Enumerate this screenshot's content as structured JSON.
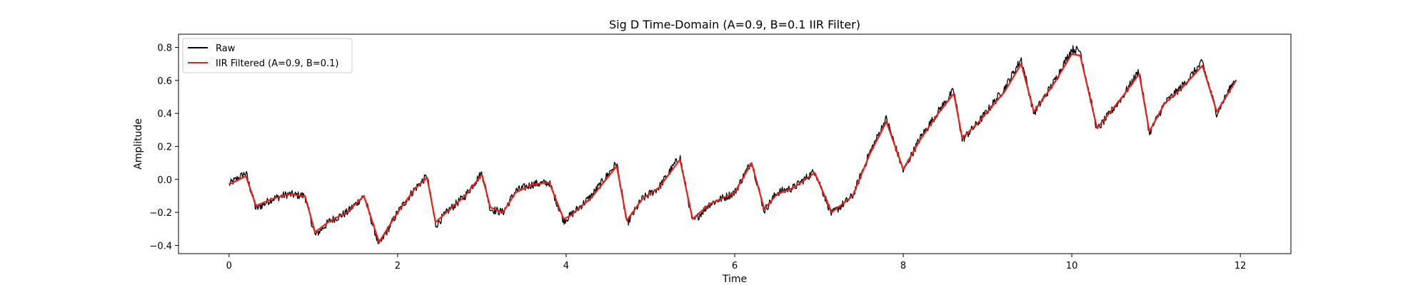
{
  "chart_data": {
    "type": "line",
    "title": "Sig D Time-Domain (A=0.9, B=0.1 IIR Filter)",
    "xlabel": "Time",
    "ylabel": "Amplitude",
    "xlim": [
      -0.6,
      12.6
    ],
    "ylim": [
      -0.45,
      0.88
    ],
    "xticks": [
      0,
      2,
      4,
      6,
      8,
      10,
      12
    ],
    "yticks": [
      -0.4,
      -0.2,
      0.0,
      0.2,
      0.4,
      0.6,
      0.8
    ],
    "xtick_labels": [
      "0",
      "2",
      "4",
      "6",
      "8",
      "10",
      "12"
    ],
    "ytick_labels": [
      "−0.4",
      "−0.2",
      "0.0",
      "0.2",
      "0.4",
      "0.6",
      "0.8"
    ],
    "grid": false,
    "legend_position": "top-left",
    "series": [
      {
        "name": "Raw",
        "color": "#000000",
        "noisy": true,
        "x": [
          0.0,
          0.2,
          0.32,
          0.5,
          0.7,
          0.9,
          1.02,
          1.2,
          1.4,
          1.6,
          1.78,
          2.0,
          2.2,
          2.35,
          2.45,
          2.6,
          2.8,
          3.0,
          3.1,
          3.25,
          3.4,
          3.6,
          3.8,
          3.97,
          4.05,
          4.3,
          4.6,
          4.72,
          4.9,
          5.1,
          5.35,
          5.5,
          5.7,
          6.0,
          6.2,
          6.35,
          6.5,
          6.7,
          6.95,
          7.15,
          7.4,
          7.6,
          7.8,
          8.0,
          8.2,
          8.4,
          8.6,
          8.7,
          8.9,
          9.2,
          9.4,
          9.55,
          9.8,
          10.0,
          10.1,
          10.3,
          10.6,
          10.8,
          10.92,
          11.1,
          11.3,
          11.55,
          11.72,
          11.95
        ],
        "y": [
          -0.03,
          0.04,
          -0.18,
          -0.12,
          -0.09,
          -0.1,
          -0.34,
          -0.25,
          -0.2,
          -0.1,
          -0.4,
          -0.2,
          -0.06,
          0.02,
          -0.28,
          -0.19,
          -0.1,
          0.04,
          -0.18,
          -0.2,
          -0.07,
          -0.03,
          -0.02,
          -0.25,
          -0.22,
          -0.1,
          0.1,
          -0.27,
          -0.12,
          -0.05,
          0.14,
          -0.26,
          -0.15,
          -0.08,
          0.11,
          -0.19,
          -0.08,
          -0.05,
          0.05,
          -0.21,
          -0.1,
          0.16,
          0.37,
          0.05,
          0.25,
          0.4,
          0.54,
          0.24,
          0.35,
          0.55,
          0.73,
          0.4,
          0.6,
          0.79,
          0.78,
          0.3,
          0.5,
          0.66,
          0.28,
          0.46,
          0.56,
          0.71,
          0.4,
          0.62
        ]
      },
      {
        "name": "IIR Filtered (A=0.9, B=0.1)",
        "color": "#e8201e",
        "noisy": false,
        "x": [
          0.0,
          0.2,
          0.32,
          0.5,
          0.7,
          0.9,
          1.02,
          1.2,
          1.4,
          1.6,
          1.78,
          2.0,
          2.2,
          2.35,
          2.45,
          2.6,
          2.8,
          3.0,
          3.1,
          3.25,
          3.4,
          3.6,
          3.8,
          3.97,
          4.05,
          4.3,
          4.6,
          4.72,
          4.9,
          5.1,
          5.35,
          5.5,
          5.7,
          6.0,
          6.2,
          6.35,
          6.5,
          6.7,
          6.95,
          7.15,
          7.4,
          7.6,
          7.8,
          8.0,
          8.2,
          8.4,
          8.6,
          8.7,
          8.9,
          9.2,
          9.4,
          9.55,
          9.8,
          10.0,
          10.1,
          10.3,
          10.6,
          10.8,
          10.92,
          11.1,
          11.3,
          11.55,
          11.72,
          11.95
        ],
        "y": [
          -0.03,
          0.02,
          -0.16,
          -0.12,
          -0.09,
          -0.1,
          -0.32,
          -0.25,
          -0.2,
          -0.1,
          -0.38,
          -0.2,
          -0.06,
          0.01,
          -0.26,
          -0.19,
          -0.1,
          0.03,
          -0.17,
          -0.2,
          -0.08,
          -0.03,
          -0.02,
          -0.24,
          -0.22,
          -0.11,
          0.08,
          -0.25,
          -0.12,
          -0.05,
          0.12,
          -0.24,
          -0.15,
          -0.08,
          0.1,
          -0.18,
          -0.09,
          -0.05,
          0.04,
          -0.2,
          -0.1,
          0.15,
          0.35,
          0.06,
          0.24,
          0.39,
          0.52,
          0.25,
          0.35,
          0.53,
          0.7,
          0.41,
          0.59,
          0.76,
          0.75,
          0.31,
          0.5,
          0.64,
          0.29,
          0.46,
          0.55,
          0.69,
          0.41,
          0.6
        ]
      }
    ]
  }
}
